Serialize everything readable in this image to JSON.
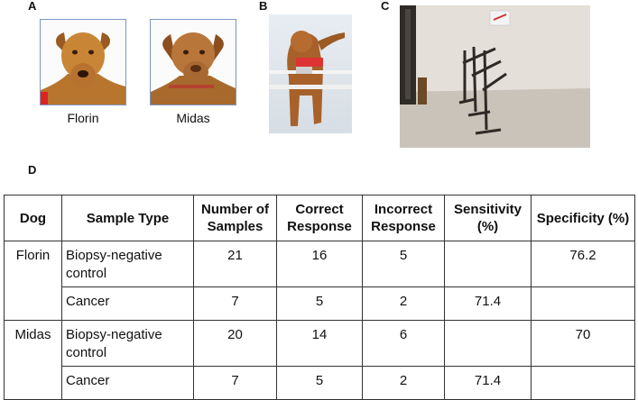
{
  "panels": {
    "a": "A",
    "b": "B",
    "c": "C",
    "d": "D"
  },
  "captions": {
    "florin": "Florin",
    "midas": "Midas"
  },
  "table": {
    "headers": [
      "Dog",
      "Sample Type",
      "Number of Samples",
      "Correct Response",
      "Incorrect Response",
      "Sensitivity (%)",
      "Specificity (%)"
    ],
    "rows": [
      {
        "dog": "Florin",
        "sample_type": "Biopsy-negative control",
        "number": "21",
        "correct": "16",
        "incorrect": "5",
        "sensitivity": "",
        "specificity": "76.2"
      },
      {
        "dog": "",
        "sample_type": "Cancer",
        "number": "7",
        "correct": "5",
        "incorrect": "2",
        "sensitivity": "71.4",
        "specificity": ""
      },
      {
        "dog": "Midas",
        "sample_type": "Biopsy-negative control",
        "number": "20",
        "correct": "14",
        "incorrect": "6",
        "sensitivity": "",
        "specificity": "70"
      },
      {
        "dog": "",
        "sample_type": "Cancer",
        "number": "7",
        "correct": "5",
        "incorrect": "2",
        "sensitivity": "71.4",
        "specificity": ""
      }
    ]
  }
}
